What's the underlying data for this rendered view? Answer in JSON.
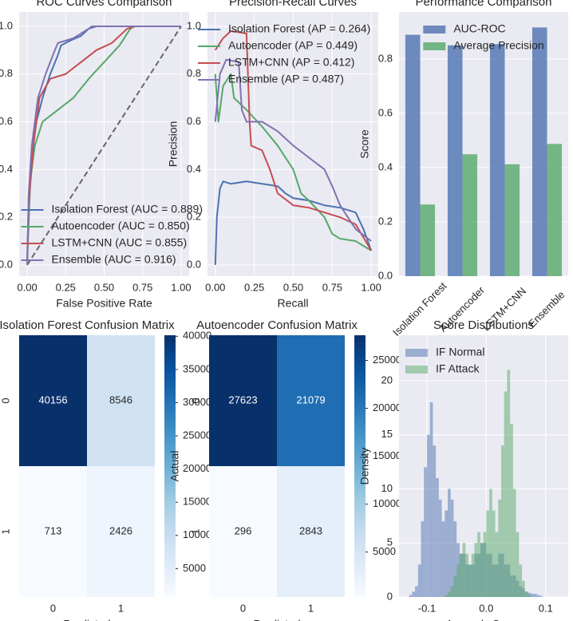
{
  "chart_data": [
    {
      "type": "line",
      "title": "ROC Curves Comparison",
      "x_label": "False Positive Rate",
      "xlim": [
        -0.052,
        1.052
      ],
      "ylim": [
        -0.047,
        1.06
      ],
      "grid": true,
      "legend": "lower right",
      "xticks": [
        {
          "value": 0,
          "label": "0.00"
        },
        {
          "value": 0.25,
          "label": "0.25"
        },
        {
          "value": 0.5,
          "label": "0.50"
        },
        {
          "value": 0.75,
          "label": "0.75"
        },
        {
          "value": 1,
          "label": "1.00"
        }
      ],
      "yticks": [
        {
          "value": 0,
          "label": "0.0"
        },
        {
          "value": 0.2,
          "label": "0.2"
        },
        {
          "value": 0.4,
          "label": "0.4"
        },
        {
          "value": 0.6,
          "label": "0.6"
        },
        {
          "value": 0.8,
          "label": "0.8"
        },
        {
          "value": 1,
          "label": "1.0"
        }
      ],
      "reference_line": {
        "x": [
          0,
          1
        ],
        "values": [
          0,
          1
        ],
        "color": "#666666",
        "dashed": true
      },
      "series": [
        {
          "name": "Isolation Forest (AUC = 0.889)",
          "color": "#4c72b0",
          "x": [
            0,
            0.01,
            0.03,
            0.06,
            0.1,
            0.15,
            0.2,
            0.22,
            0.28,
            0.35,
            0.4,
            0.45,
            1
          ],
          "values": [
            0,
            0.3,
            0.45,
            0.6,
            0.7,
            0.8,
            0.88,
            0.92,
            0.94,
            0.96,
            0.99,
            1,
            1
          ]
        },
        {
          "name": "Autoencoder (AUC = 0.850)",
          "color": "#55a868",
          "x": [
            0,
            0.02,
            0.05,
            0.1,
            0.2,
            0.3,
            0.4,
            0.5,
            0.6,
            0.67,
            0.7,
            1
          ],
          "values": [
            0,
            0.35,
            0.5,
            0.6,
            0.65,
            0.7,
            0.78,
            0.85,
            0.92,
            0.99,
            1,
            1
          ]
        },
        {
          "name": "LSTM+CNN (AUC = 0.855)",
          "color": "#c44e52",
          "x": [
            0,
            0.01,
            0.04,
            0.08,
            0.15,
            0.25,
            0.35,
            0.45,
            0.55,
            0.65,
            0.7,
            1
          ],
          "values": [
            0,
            0.25,
            0.5,
            0.7,
            0.78,
            0.8,
            0.85,
            0.9,
            0.93,
            0.99,
            1,
            1
          ]
        },
        {
          "name": "Ensemble (AUC = 0.916)",
          "color": "#8172b2",
          "x": [
            0,
            0.01,
            0.03,
            0.07,
            0.12,
            0.18,
            0.2,
            0.3,
            0.4,
            0.42,
            1
          ],
          "values": [
            0,
            0.3,
            0.5,
            0.7,
            0.8,
            0.9,
            0.93,
            0.95,
            0.99,
            1,
            1
          ]
        }
      ]
    },
    {
      "type": "line",
      "title": "Precision-Recall Curves",
      "x_label": "Recall",
      "y_label": "Precision",
      "xlim": [
        -0.05,
        1.045
      ],
      "ylim": [
        -0.047,
        1.06
      ],
      "grid": true,
      "legend": "upper left",
      "xticks": [
        {
          "value": 0,
          "label": "0.00"
        },
        {
          "value": 0.25,
          "label": "0.25"
        },
        {
          "value": 0.5,
          "label": "0.50"
        },
        {
          "value": 0.75,
          "label": "0.75"
        },
        {
          "value": 1,
          "label": "1.00"
        }
      ],
      "yticks": [
        {
          "value": 0,
          "label": "0.0"
        },
        {
          "value": 0.2,
          "label": "0.2"
        },
        {
          "value": 0.4,
          "label": "0.4"
        },
        {
          "value": 0.6,
          "label": "0.6"
        },
        {
          "value": 0.8,
          "label": "0.8"
        },
        {
          "value": 1,
          "label": "1.0"
        }
      ],
      "series": [
        {
          "name": "Isolation Forest (AP = 0.264)",
          "color": "#4c72b0",
          "x": [
            0,
            0.01,
            0.03,
            0.05,
            0.1,
            0.2,
            0.3,
            0.4,
            0.45,
            0.5,
            0.6,
            0.7,
            0.8,
            0.9,
            0.95,
            1
          ],
          "values": [
            0,
            0.2,
            0.32,
            0.35,
            0.34,
            0.35,
            0.34,
            0.33,
            0.3,
            0.28,
            0.27,
            0.25,
            0.24,
            0.22,
            0.15,
            0.06
          ]
        },
        {
          "name": "Autoencoder (AP = 0.449)",
          "color": "#55a868",
          "x": [
            0,
            0.02,
            0.05,
            0.1,
            0.12,
            0.2,
            0.3,
            0.4,
            0.5,
            0.55,
            0.6,
            0.7,
            0.75,
            0.8,
            0.9,
            1
          ],
          "values": [
            0.8,
            0.6,
            0.75,
            0.8,
            0.7,
            0.65,
            0.58,
            0.5,
            0.4,
            0.3,
            0.27,
            0.2,
            0.13,
            0.11,
            0.1,
            0.06
          ]
        },
        {
          "name": "LSTM+CNN (AP = 0.412)",
          "color": "#c44e52",
          "x": [
            0,
            0.05,
            0.1,
            0.2,
            0.22,
            0.23,
            0.3,
            0.35,
            0.4,
            0.5,
            0.6,
            0.7,
            0.8,
            0.9,
            1
          ],
          "values": [
            0.9,
            0.95,
            0.98,
            0.97,
            0.6,
            0.5,
            0.48,
            0.4,
            0.3,
            0.25,
            0.24,
            0.22,
            0.2,
            0.17,
            0.06
          ]
        },
        {
          "name": "Ensemble (AP = 0.487)",
          "color": "#8172b2",
          "x": [
            0,
            0.03,
            0.07,
            0.15,
            0.17,
            0.2,
            0.3,
            0.4,
            0.5,
            0.6,
            0.7,
            0.75,
            0.8,
            0.9,
            1
          ],
          "values": [
            0.6,
            0.8,
            0.86,
            0.85,
            0.65,
            0.6,
            0.6,
            0.56,
            0.5,
            0.45,
            0.4,
            0.33,
            0.25,
            0.15,
            0.1
          ]
        }
      ]
    },
    {
      "type": "bar",
      "title": "Performance Comparison",
      "y_label": "Score",
      "categories": [
        "Isolation Forest",
        "Autoencoder",
        "LSTM+CNN",
        "Ensemble"
      ],
      "ylim": [
        0,
        0.973
      ],
      "grid": true,
      "legend": "upper center",
      "opacity": 0.8,
      "yticks": [
        {
          "value": 0,
          "label": "0.0"
        },
        {
          "value": 0.2,
          "label": "0.2"
        },
        {
          "value": 0.4,
          "label": "0.4"
        },
        {
          "value": 0.6,
          "label": "0.6"
        },
        {
          "value": 0.8,
          "label": "0.8"
        }
      ],
      "series": [
        {
          "name": "AUC-ROC",
          "color": "#4c72b0",
          "values": [
            0.889,
            0.85,
            0.855,
            0.916
          ]
        },
        {
          "name": "Average Precision",
          "color": "#55a868",
          "values": [
            0.264,
            0.449,
            0.412,
            0.487
          ]
        }
      ]
    },
    {
      "type": "heatmap",
      "title": "Isolation Forest Confusion Matrix",
      "x_label": "Predicted",
      "x_categories": [
        "0",
        "1"
      ],
      "y_categories": [
        "0",
        "1"
      ],
      "values": [
        [
          40156,
          8546
        ],
        [
          713,
          2426
        ]
      ],
      "clim": [
        713,
        40156
      ],
      "colorbar_ticks": [
        5000,
        10000,
        15000,
        20000,
        25000,
        30000,
        35000,
        40000
      ],
      "colormap": [
        "#f7fbff",
        "#deebf7",
        "#c6dbef",
        "#9ecae1",
        "#6baed6",
        "#4292c6",
        "#2171b5",
        "#08519c",
        "#08306b"
      ]
    },
    {
      "type": "heatmap",
      "title": "Autoencoder Confusion Matrix",
      "x_label": "Predicted",
      "y_label": "Actual",
      "x_categories": [
        "0",
        "1"
      ],
      "y_categories": [
        "0",
        "1"
      ],
      "values": [
        [
          27623,
          21079
        ],
        [
          296,
          2843
        ]
      ],
      "clim": [
        296,
        27623
      ],
      "colorbar_ticks": [
        5000,
        10000,
        15000,
        20000,
        25000
      ],
      "colormap": [
        "#f7fbff",
        "#deebf7",
        "#c6dbef",
        "#9ecae1",
        "#6baed6",
        "#4292c6",
        "#2171b5",
        "#08519c",
        "#08306b"
      ]
    },
    {
      "type": "histogram",
      "title": "Score Distributions",
      "x_label": "Anomaly Score",
      "y_label": "Density",
      "xlim": [
        -0.147,
        0.138
      ],
      "ylim": [
        0,
        24.2
      ],
      "grid": true,
      "legend": "upper left",
      "opacity": 0.5,
      "xticks": [
        -0.1,
        {
          "value": 0,
          "label": "0.0"
        },
        0.1
      ],
      "yticks": [
        0,
        5,
        10,
        15,
        20
      ],
      "bins": [
        -0.13,
        -0.125,
        -0.12,
        -0.115,
        -0.11,
        -0.105,
        -0.1,
        -0.095,
        -0.09,
        -0.085,
        -0.08,
        -0.075,
        -0.07,
        -0.065,
        -0.06,
        -0.055,
        -0.05,
        -0.045,
        -0.04,
        -0.035,
        -0.03,
        -0.025,
        -0.02,
        -0.015,
        -0.01,
        -0.005,
        0,
        0.005,
        0.01,
        0.015,
        0.02,
        0.025,
        0.03,
        0.035,
        0.04,
        0.045,
        0.05,
        0.055,
        0.06,
        0.065,
        0.07,
        0.075,
        0.08,
        0.085,
        0.09,
        0.095,
        0.1,
        0.105,
        0.11,
        0.115,
        0.12,
        0.125,
        0.13
      ],
      "series": [
        {
          "name": "IF Normal",
          "color": "#4c72b0",
          "values": [
            0.2,
            0.5,
            1,
            3,
            7,
            12,
            15,
            18,
            14,
            11,
            9,
            7,
            8,
            10,
            9,
            7,
            5,
            4,
            4,
            3,
            3,
            3,
            4,
            4,
            5,
            5,
            4,
            4,
            3,
            3,
            4,
            4,
            3,
            3,
            2,
            2,
            1.5,
            1,
            0.8,
            0.5,
            0.4,
            0.3,
            0.3,
            0.2,
            0.1,
            0,
            0,
            0,
            0,
            0,
            0,
            0
          ]
        },
        {
          "name": "IF Attack",
          "color": "#55a868",
          "values": [
            0,
            0,
            0,
            0,
            0,
            0,
            0,
            0,
            0,
            0,
            0,
            0,
            0.2,
            0.5,
            1,
            2,
            3,
            4,
            5,
            4,
            3,
            4,
            5,
            6,
            5,
            6,
            8,
            10,
            8,
            6,
            9,
            14,
            19,
            21,
            16,
            10,
            6,
            3,
            1.5,
            0.5,
            0.2,
            0,
            0,
            0,
            0,
            0,
            0,
            0,
            0,
            0,
            0,
            0
          ]
        }
      ]
    }
  ]
}
